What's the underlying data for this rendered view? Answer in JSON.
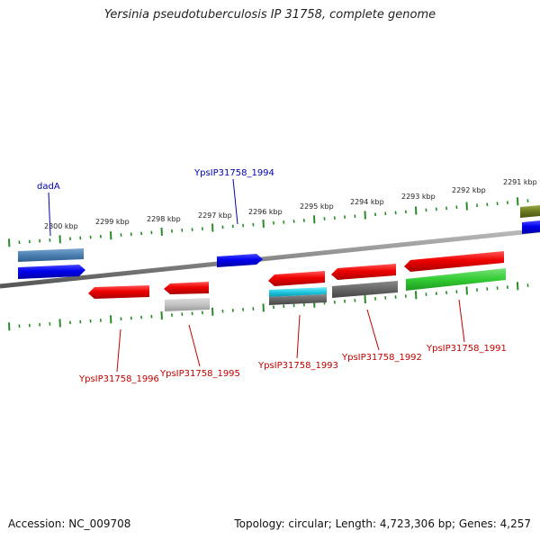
{
  "title": "Yersinia pseudotuberculosis IP 31758, complete genome",
  "footer": {
    "accession": "Accession: NC_009708",
    "stats": "Topology: circular; Length: 4,723,306 bp; Genes: 4,257"
  },
  "colors": {
    "backbone": "#888888",
    "ticks": "#2a8a2a",
    "forward_label": "#0000aa",
    "reverse_label": "#c00000"
  },
  "scale": {
    "unit": "kbp",
    "ticks": [
      "2300 kbp",
      "2299 kbp",
      "2298 kbp",
      "2297 kbp",
      "2296 kbp",
      "2295 kbp",
      "2294 kbp",
      "2293 kbp",
      "2292 kbp",
      "2291 kbp"
    ]
  },
  "gene_labels": {
    "forward": [
      "dadA",
      "YpsIP31758_1994"
    ],
    "reverse": [
      "YpsIP31758_1996",
      "YpsIP31758_1995",
      "YpsIP31758_1993",
      "YpsIP31758_1992",
      "YpsIP31758_1991"
    ]
  }
}
